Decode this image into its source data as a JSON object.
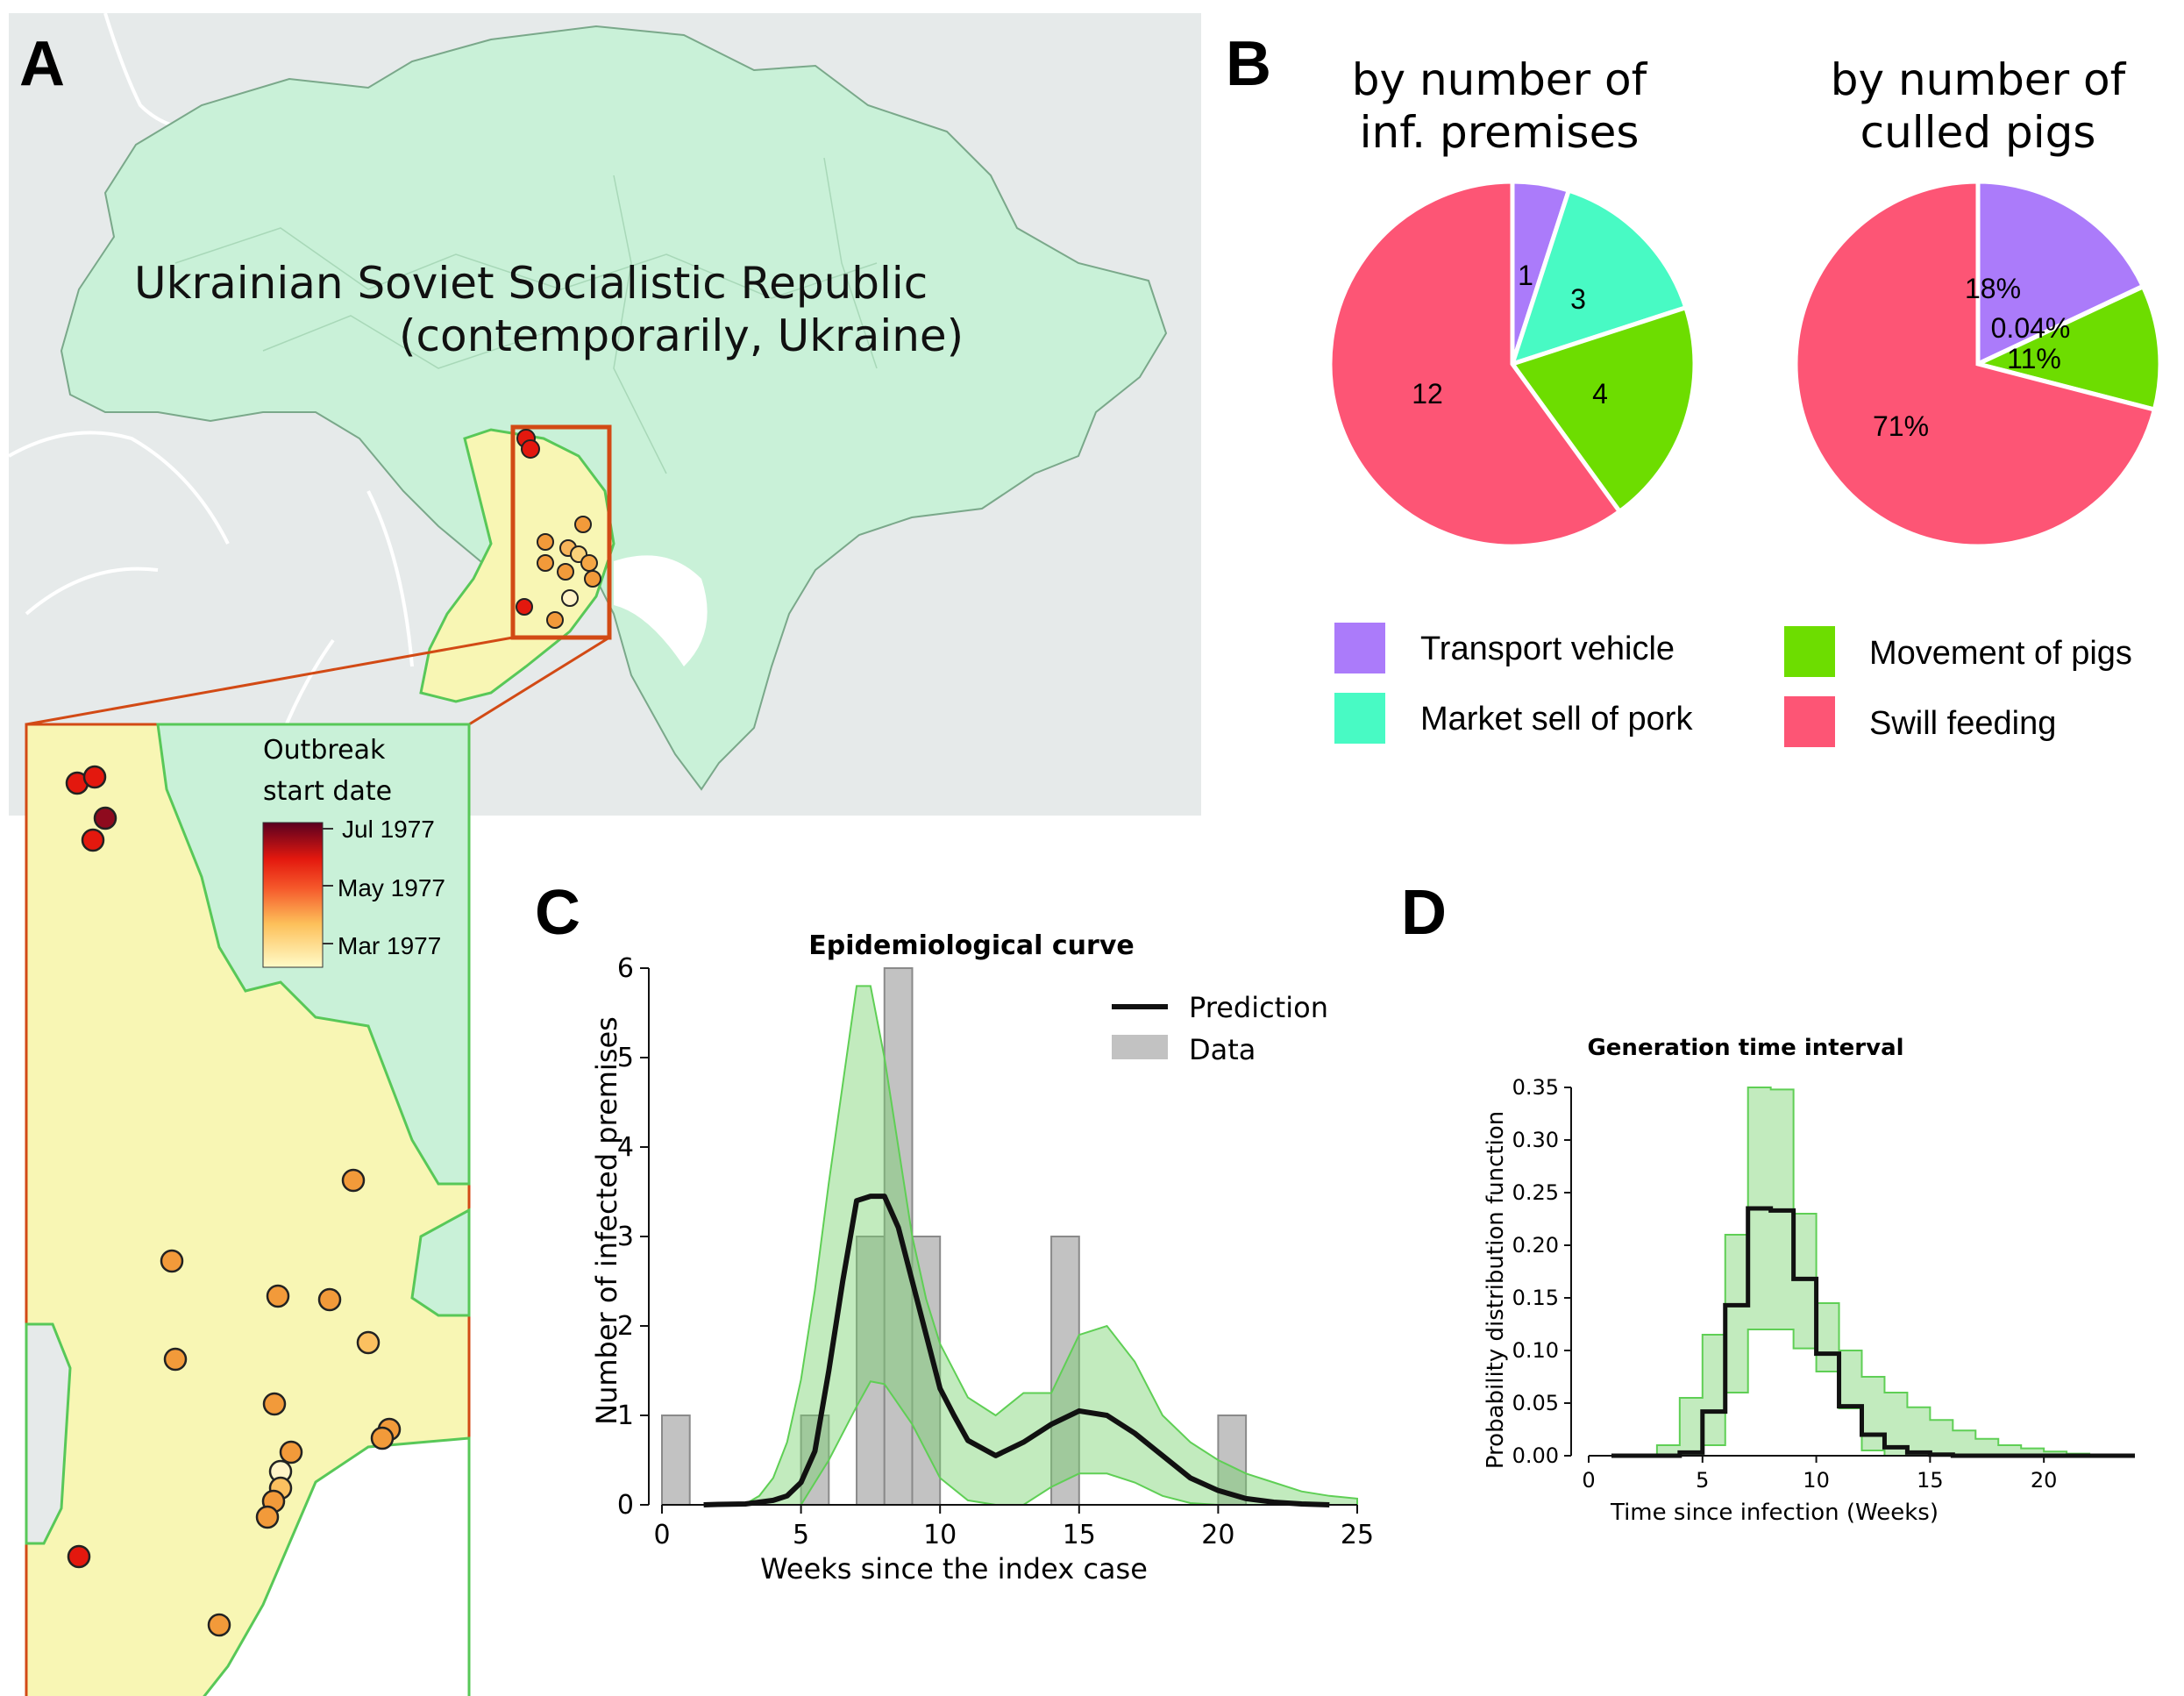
{
  "panels": {
    "a": "A",
    "b": "B",
    "c": "C",
    "d": "D"
  },
  "map": {
    "region_label_1": "Ukrainian Soviet Socialistic Republic",
    "region_label_2": "(contemporarily, Ukraine)",
    "colors": {
      "land": "#c9f1d8",
      "background": "#e6eaea",
      "highlight": "#f8f6b4",
      "border": "#58c858",
      "box": "#d24a15"
    },
    "colorbar": {
      "title_1": "Outbreak",
      "title_2": "start date",
      "ticks": [
        "Jul 1977",
        "May 1977",
        "Mar 1977"
      ]
    }
  },
  "pie": {
    "title1_line1": "by number of",
    "title1_line2": "inf. premises",
    "title2_line1": "by number of",
    "title2_line2": "culled pigs",
    "legend": [
      {
        "label": "Transport vehicle",
        "color": "#ab7bfa"
      },
      {
        "label": "Market sell of pork",
        "color": "#48fac4"
      },
      {
        "label": "Movement of pigs",
        "color": "#6ddd00"
      },
      {
        "label": "Swill feeding",
        "color": "#fd5575"
      }
    ]
  },
  "chart_data": [
    {
      "type": "pie",
      "title": "by number of inf. premises",
      "labels": [
        "Transport vehicle",
        "Market sell of pork",
        "Movement of pigs",
        "Swill feeding"
      ],
      "values": [
        1,
        3,
        4,
        12
      ],
      "data_labels": [
        "1",
        "3",
        "4",
        "12"
      ]
    },
    {
      "type": "pie",
      "title": "by number of culled pigs",
      "labels": [
        "Transport vehicle",
        "Market sell of pork",
        "Movement of pigs",
        "Swill feeding"
      ],
      "values": [
        18,
        0.04,
        11,
        71
      ],
      "data_labels": [
        "18%",
        "0.04%",
        "11%",
        "71%"
      ]
    },
    {
      "type": "line",
      "title": "Epidemiological curve",
      "xlabel": "Weeks since the index case",
      "ylabel": "Number of infected premises",
      "xlim": [
        0,
        25
      ],
      "ylim": [
        0,
        6
      ],
      "xticks": [
        0,
        5,
        10,
        15,
        20,
        25
      ],
      "yticks": [
        0,
        1,
        2,
        3,
        4,
        5,
        6
      ],
      "legend": [
        "Prediction",
        "Data"
      ],
      "legend_position": "top-right",
      "bars": {
        "name": "Data",
        "x": [
          0,
          5,
          7,
          8,
          9,
          14,
          20
        ],
        "width": 1,
        "values": [
          1,
          1,
          3,
          6,
          3,
          3,
          1
        ]
      },
      "prediction": {
        "name": "Prediction",
        "x": [
          1.5,
          2,
          3,
          3.5,
          4,
          4.5,
          5,
          5.5,
          6,
          6.5,
          7,
          7.5,
          8,
          8.5,
          9,
          10,
          10.5,
          11,
          12,
          13,
          14,
          15,
          16,
          17,
          18,
          19,
          20,
          21,
          22,
          23,
          24
        ],
        "y": [
          0,
          0.005,
          0.01,
          0.03,
          0.05,
          0.1,
          0.25,
          0.6,
          1.5,
          2.5,
          3.4,
          3.45,
          3.45,
          3.1,
          2.5,
          1.3,
          1.0,
          0.72,
          0.55,
          0.7,
          0.9,
          1.05,
          1.0,
          0.8,
          0.55,
          0.3,
          0.16,
          0.07,
          0.03,
          0.01,
          0.0
        ]
      },
      "band_upper": {
        "x": [
          3,
          3.5,
          4,
          4.5,
          5,
          5.5,
          6,
          7,
          7.5,
          8,
          9,
          9.5,
          10,
          11,
          12,
          13,
          14,
          15,
          16,
          17,
          18,
          19,
          20,
          21,
          22,
          23,
          24,
          25
        ],
        "y": [
          0.01,
          0.1,
          0.3,
          0.7,
          1.4,
          2.4,
          3.6,
          5.8,
          5.8,
          5.0,
          3.0,
          2.3,
          1.8,
          1.2,
          1.0,
          1.25,
          1.25,
          1.9,
          2.0,
          1.6,
          1.0,
          0.7,
          0.5,
          0.35,
          0.25,
          0.15,
          0.1,
          0.07
        ]
      },
      "band_lower": {
        "x": [
          3,
          4,
          5,
          6,
          7,
          7.5,
          8,
          9,
          10,
          11,
          12,
          13,
          14,
          15,
          16,
          17,
          18,
          19,
          20
        ],
        "y": [
          0,
          0,
          0,
          0.5,
          1.1,
          1.38,
          1.35,
          0.9,
          0.3,
          0.05,
          0,
          0,
          0.2,
          0.35,
          0.35,
          0.25,
          0.1,
          0.02,
          0
        ]
      }
    },
    {
      "type": "line",
      "title": "Generation time interval",
      "xlabel": "Time since infection (Weeks)",
      "ylabel": "Probability distribution function",
      "xlim": [
        0,
        24
      ],
      "ylim": [
        0,
        0.35
      ],
      "xticks": [
        0,
        5,
        10,
        15,
        20
      ],
      "yticks": [
        "0.00",
        "0.05",
        "0.10",
        "0.15",
        "0.20",
        "0.25",
        "0.30",
        "0.35"
      ],
      "step_edges": [
        1,
        2,
        3,
        4,
        5,
        6,
        7,
        8,
        9,
        10,
        11,
        12,
        13,
        14,
        15,
        16,
        17,
        18,
        19,
        20,
        21,
        22,
        23,
        24
      ],
      "median": [
        0,
        0,
        0,
        0.003,
        0.042,
        0.143,
        0.235,
        0.233,
        0.168,
        0.097,
        0.047,
        0.02,
        0.008,
        0.003,
        0.001,
        0,
        0,
        0,
        0,
        0,
        0,
        0,
        0
      ],
      "upper": [
        0,
        0,
        0.01,
        0.055,
        0.115,
        0.21,
        0.35,
        0.348,
        0.23,
        0.145,
        0.1,
        0.075,
        0.06,
        0.046,
        0.034,
        0.024,
        0.016,
        0.01,
        0.007,
        0.004,
        0.002,
        0.001,
        0.0
      ],
      "lower": [
        0,
        0,
        0,
        0,
        0.01,
        0.06,
        0.12,
        0.12,
        0.102,
        0.08,
        0.045,
        0.005,
        0,
        0,
        0,
        0,
        0,
        0,
        0,
        0,
        0,
        0,
        0
      ]
    }
  ]
}
